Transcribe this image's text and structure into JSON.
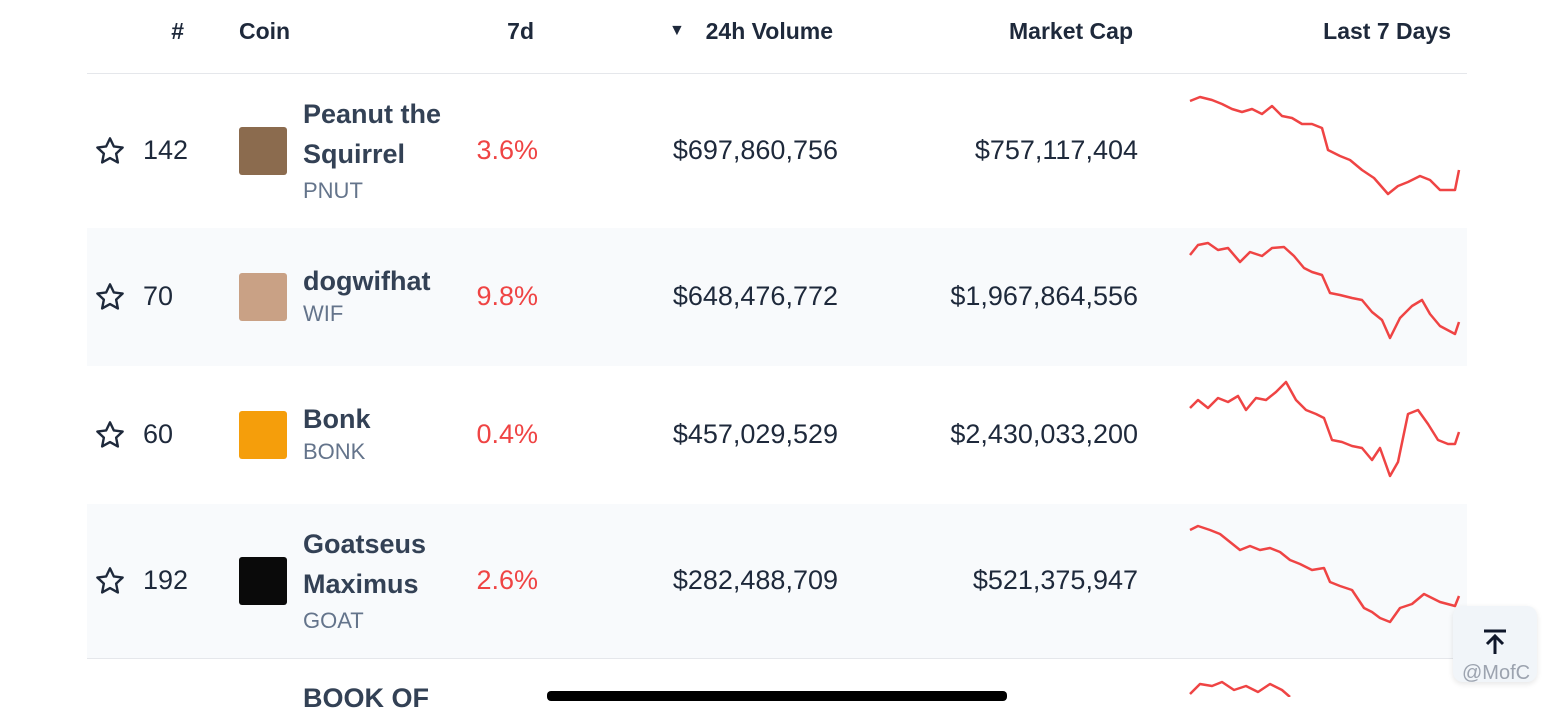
{
  "header": {
    "rank": "#",
    "coin": "Coin",
    "change_7d": "7d",
    "sort_indicator": "▼",
    "volume": "24h Volume",
    "market_cap": "Market Cap",
    "sparkline": "Last 7 Days"
  },
  "table": {
    "rows": [
      {
        "rank": "142",
        "name": "Peanut the Squirrel",
        "symbol": "PNUT",
        "change_7d": "3.6%",
        "volume": "$697,860,756",
        "market_cap": "$757,117,404"
      },
      {
        "rank": "70",
        "name": "dogwifhat",
        "symbol": "WIF",
        "change_7d": "9.8%",
        "volume": "$648,476,772",
        "market_cap": "$1,967,864,556"
      },
      {
        "rank": "60",
        "name": "Bonk",
        "symbol": "BONK",
        "change_7d": "0.4%",
        "volume": "$457,029,529",
        "market_cap": "$2,430,033,200"
      },
      {
        "rank": "192",
        "name": "Goatseus Maximus",
        "symbol": "GOAT",
        "change_7d": "2.6%",
        "volume": "$282,488,709",
        "market_cap": "$521,375,947"
      }
    ],
    "partial_row": {
      "name": "BOOK OF"
    }
  },
  "watermark": "@MofC"
}
